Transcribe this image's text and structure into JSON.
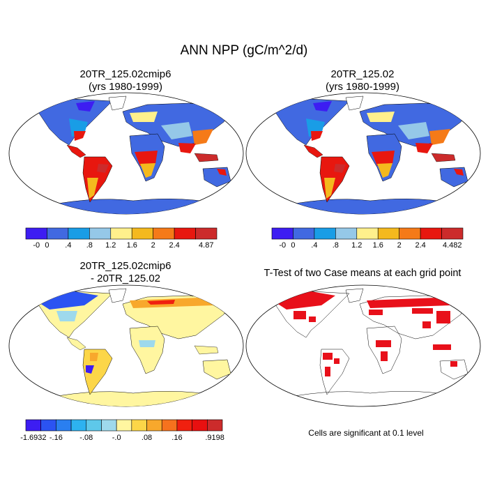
{
  "title": "ANN NPP (gC/m^2/d)",
  "panels": {
    "top_left": {
      "title": "20TR_125.02cmip6",
      "subtitle": "(yrs 1980-1999)"
    },
    "top_right": {
      "title": "20TR_125.02",
      "subtitle": "(yrs 1980-1999)"
    },
    "bottom_left": {
      "title": "20TR_125.02cmip6",
      "subtitle": "- 20TR_125.02"
    },
    "bottom_right": {
      "title": "T-Test of two Case means at each grid point",
      "note": "Cells are significant at 0.1 level"
    }
  },
  "colorbars": {
    "left_top": {
      "labels": [
        "-0",
        "0",
        ".4",
        ".8",
        "1.2",
        "1.6",
        "2",
        "2.4",
        "4.87"
      ],
      "colors": [
        "#3d1df2",
        "#4169e1",
        "#199de6",
        "#95c8e8",
        "#fff08c",
        "#f4b91e",
        "#f57a18",
        "#e8170f",
        "#cc2b2b"
      ]
    },
    "right_top": {
      "labels": [
        "-0",
        "0",
        ".4",
        ".8",
        "1.2",
        "1.6",
        "2",
        "2.4",
        "4.482"
      ],
      "colors": [
        "#3d1df2",
        "#4169e1",
        "#199de6",
        "#95c8e8",
        "#fff08c",
        "#f4b91e",
        "#f57a18",
        "#e8170f",
        "#cc2b2b"
      ]
    },
    "diff": {
      "labels": [
        "-1.6932",
        "-.16",
        "-.08",
        "-.0",
        ".08",
        ".16",
        ".9198"
      ],
      "colors": [
        "#3d1df2",
        "#2b53f2",
        "#2a7ff0",
        "#2db2f0",
        "#5ec8ea",
        "#9ed9ec",
        "#fff6a0",
        "#fcd648",
        "#f8a82c",
        "#f6721e",
        "#f0200f",
        "#e81010",
        "#cc2b2b"
      ]
    }
  }
}
